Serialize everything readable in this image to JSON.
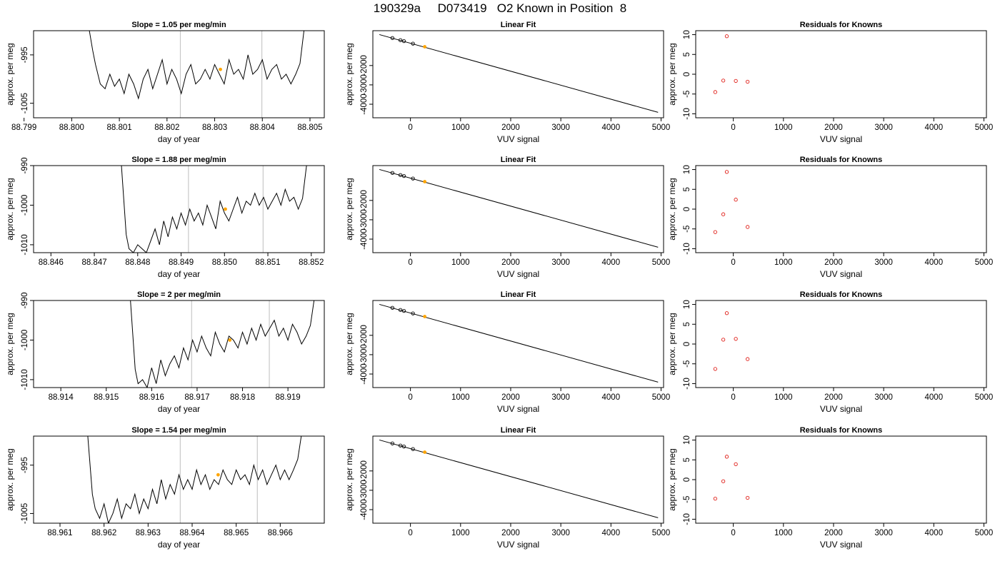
{
  "title": "190329a     D073419   O2 Known in Position  8",
  "colors": {
    "trace": "#000000",
    "vline": "#c8c8c8",
    "highlight": "#ffa500",
    "point": "#000000",
    "residual": "#e0201a"
  },
  "chart_data": [
    {
      "type": "line",
      "panel": "trace-1",
      "title": "Slope =  1.05  per meg/min",
      "xlabel": "day of year",
      "ylabel": "approx. per meg",
      "xlim": [
        88.7992,
        88.8053
      ],
      "ylim": [
        -1008,
        -990
      ],
      "xticks": [
        "88.799",
        "88.800",
        "88.801",
        "88.802",
        "88.803",
        "88.804",
        "88.805"
      ],
      "yticks": [
        "-995",
        "-1005"
      ],
      "vlines": [
        88.80228,
        88.80399
      ],
      "highlight_point": [
        88.80312,
        -998.0
      ],
      "x": [
        88.8005,
        88.8006,
        88.8007,
        88.8008,
        88.8009,
        88.801,
        88.8011,
        88.8012,
        88.8013,
        88.8014,
        88.8015,
        88.8016,
        88.8017,
        88.8018,
        88.8019,
        88.802,
        88.8021,
        88.8022,
        88.8023,
        88.8024,
        88.8025,
        88.8026,
        88.8027,
        88.8028,
        88.8029,
        88.803,
        88.8031,
        88.8032,
        88.8033,
        88.8034,
        88.8035,
        88.8036,
        88.8037,
        88.8038,
        88.8039,
        88.804,
        88.8041,
        88.8042,
        88.8043,
        88.8044,
        88.8045,
        88.8046,
        88.8047
      ],
      "y": [
        -997,
        -1001,
        -1002,
        -999,
        -1001.5,
        -1000,
        -1003,
        -999,
        -1001,
        -1004,
        -1000,
        -998,
        -1002,
        -999,
        -996,
        -1001,
        -998,
        -1000,
        -1003,
        -999,
        -997,
        -1001,
        -1000,
        -998,
        -1000,
        -997,
        -999,
        -1001,
        -996,
        -999,
        -998,
        -1000,
        -995,
        -999,
        -998,
        -996,
        -1000,
        -998,
        -997,
        -1000,
        -999,
        -1001,
        -999
      ]
    },
    {
      "type": "line",
      "panel": "fit-1",
      "title": "Linear Fit",
      "xlabel": "VUV signal",
      "ylabel": "approx. per meg",
      "xlim": [
        -750,
        5050
      ],
      "ylim": [
        -4700,
        -200
      ],
      "xticks": [
        0,
        1000,
        2000,
        3000,
        4000,
        5000
      ],
      "yticks": [
        -2000,
        -3000,
        -4000
      ],
      "line": [
        [
          -620,
          -400
        ],
        [
          4940,
          -4420
        ]
      ],
      "points": [
        [
          -360,
          -580
        ],
        [
          -200,
          -690
        ],
        [
          -130,
          -740
        ],
        [
          50,
          -870
        ]
      ],
      "highlight_point": [
        285,
        -1030
      ]
    },
    {
      "type": "scatter",
      "panel": "resid-1",
      "title": "Residuals for Knowns",
      "xlabel": "VUV signal",
      "ylabel": "approx. per meg",
      "xlim": [
        -750,
        5050
      ],
      "ylim": [
        -11,
        11
      ],
      "xticks": [
        0,
        1000,
        2000,
        3000,
        4000,
        5000
      ],
      "yticks": [
        10,
        5,
        0,
        -5,
        -10
      ],
      "x": [
        -360,
        -200,
        -130,
        50,
        285
      ],
      "y": [
        -4.5,
        -1.6,
        9.6,
        -1.7,
        -1.9
      ]
    },
    {
      "type": "line",
      "panel": "trace-2",
      "title": "Slope =  1.88  per meg/min",
      "xlabel": "day of year",
      "ylabel": "approx. per meg",
      "xlim": [
        88.8456,
        88.8523
      ],
      "ylim": [
        -1012,
        -990
      ],
      "xticks": [
        "88.846",
        "88.847",
        "88.848",
        "88.849",
        "88.850",
        "88.851",
        "88.852"
      ],
      "yticks": [
        "-990",
        "-1000",
        "-1010"
      ],
      "vlines": [
        88.84917,
        88.85089
      ],
      "highlight_point": [
        88.85002,
        -1001.0
      ],
      "x": [
        88.8478,
        88.8479,
        88.848,
        88.8481,
        88.8482,
        88.8483,
        88.8484,
        88.8485,
        88.8486,
        88.8487,
        88.8488,
        88.8489,
        88.849,
        88.8491,
        88.8492,
        88.8493,
        88.8494,
        88.8495,
        88.8496,
        88.8497,
        88.8498,
        88.8499,
        88.85,
        88.8501,
        88.8502,
        88.8503,
        88.8504,
        88.8505,
        88.8506,
        88.8507,
        88.8508,
        88.8509,
        88.851,
        88.8511,
        88.8512,
        88.8513,
        88.8514,
        88.8515,
        88.8516,
        88.8517
      ],
      "y": [
        -1011,
        -1012,
        -1010,
        -1011,
        -1012,
        -1009,
        -1006,
        -1010,
        -1004,
        -1008,
        -1003,
        -1006,
        -1002,
        -1005,
        -1001,
        -1004,
        -1002,
        -1005,
        -1000,
        -1003,
        -1006,
        -999,
        -1002,
        -1004,
        -1001,
        -998,
        -1002,
        -999,
        -1000,
        -997,
        -1000,
        -998,
        -1001,
        -999,
        -997,
        -1000,
        -996,
        -999,
        -998,
        -1001
      ]
    },
    {
      "type": "line",
      "panel": "fit-2",
      "title": "Linear Fit",
      "xlabel": "VUV signal",
      "ylabel": "approx. per meg",
      "xlim": [
        -750,
        5050
      ],
      "ylim": [
        -4700,
        -200
      ],
      "xticks": [
        0,
        1000,
        2000,
        3000,
        4000,
        5000
      ],
      "yticks": [
        -2000,
        -3000,
        -4000
      ],
      "line": [
        [
          -620,
          -400
        ],
        [
          4940,
          -4420
        ]
      ],
      "points": [
        [
          -360,
          -580
        ],
        [
          -200,
          -690
        ],
        [
          -130,
          -740
        ],
        [
          50,
          -870
        ]
      ],
      "highlight_point": [
        285,
        -1030
      ]
    },
    {
      "type": "scatter",
      "panel": "resid-2",
      "title": "Residuals for Knowns",
      "xlabel": "VUV signal",
      "ylabel": "approx. per meg",
      "xlim": [
        -750,
        5050
      ],
      "ylim": [
        -11,
        11
      ],
      "xticks": [
        0,
        1000,
        2000,
        3000,
        4000,
        5000
      ],
      "yticks": [
        10,
        5,
        0,
        -5,
        -10
      ],
      "x": [
        -360,
        -200,
        -130,
        50,
        285
      ],
      "y": [
        -5.8,
        -1.3,
        9.4,
        2.4,
        -4.5
      ]
    },
    {
      "type": "line",
      "panel": "trace-3",
      "title": "Slope =  2  per meg/min",
      "xlabel": "day of year",
      "ylabel": "approx. per meg",
      "xlim": [
        88.9134,
        88.9198
      ],
      "ylim": [
        -1012,
        -990
      ],
      "xticks": [
        "88.914",
        "88.915",
        "88.916",
        "88.917",
        "88.918",
        "88.919"
      ],
      "yticks": [
        "-990",
        "-1000",
        "-1010"
      ],
      "vlines": [
        88.91688,
        88.91859
      ],
      "highlight_point": [
        88.91772,
        -1000.0
      ],
      "x": [
        88.9157,
        88.9158,
        88.9159,
        88.916,
        88.9161,
        88.9162,
        88.9163,
        88.9164,
        88.9165,
        88.9166,
        88.9167,
        88.9168,
        88.9169,
        88.917,
        88.9171,
        88.9172,
        88.9173,
        88.9174,
        88.9175,
        88.9176,
        88.9177,
        88.9178,
        88.9179,
        88.918,
        88.9181,
        88.9182,
        88.9183,
        88.9184,
        88.9185,
        88.9186,
        88.9187,
        88.9188,
        88.9189,
        88.919,
        88.9191,
        88.9192,
        88.9193,
        88.9194
      ],
      "y": [
        -1011,
        -1010,
        -1012,
        -1007,
        -1011,
        -1005,
        -1009,
        -1006,
        -1004,
        -1007,
        -1002,
        -1005,
        -1000,
        -1003,
        -999,
        -1002,
        -1004,
        -998,
        -1001,
        -1003,
        -999,
        -1000,
        -1002,
        -998,
        -1001,
        -997,
        -1000,
        -996,
        -999,
        -997,
        -995,
        -999,
        -997,
        -1000,
        -996,
        -998,
        -1001,
        -999
      ]
    },
    {
      "type": "line",
      "panel": "fit-3",
      "title": "Linear Fit",
      "xlabel": "VUV signal",
      "ylabel": "approx. per meg",
      "xlim": [
        -750,
        5050
      ],
      "ylim": [
        -4700,
        -200
      ],
      "xticks": [
        0,
        1000,
        2000,
        3000,
        4000,
        5000
      ],
      "yticks": [
        -2000,
        -3000,
        -4000
      ],
      "line": [
        [
          -620,
          -400
        ],
        [
          4940,
          -4420
        ]
      ],
      "points": [
        [
          -360,
          -580
        ],
        [
          -200,
          -690
        ],
        [
          -130,
          -740
        ],
        [
          50,
          -870
        ]
      ],
      "highlight_point": [
        285,
        -1030
      ]
    },
    {
      "type": "scatter",
      "panel": "resid-3",
      "title": "Residuals for Knowns",
      "xlabel": "VUV signal",
      "ylabel": "approx. per meg",
      "xlim": [
        -750,
        5050
      ],
      "ylim": [
        -11,
        11
      ],
      "xticks": [
        0,
        1000,
        2000,
        3000,
        4000,
        5000
      ],
      "yticks": [
        10,
        5,
        0,
        -5,
        -10
      ],
      "x": [
        -360,
        -200,
        -130,
        50,
        285
      ],
      "y": [
        -6.3,
        1.1,
        7.8,
        1.3,
        -3.8
      ]
    },
    {
      "type": "line",
      "panel": "trace-4",
      "title": "Slope =  1.54  per meg/min",
      "xlabel": "day of year",
      "ylabel": "approx. per meg",
      "xlim": [
        88.9604,
        88.967
      ],
      "ylim": [
        -1007,
        -989
      ],
      "xticks": [
        "88.961",
        "88.962",
        "88.963",
        "88.964",
        "88.965",
        "88.966"
      ],
      "yticks": [
        "-995",
        "-1005"
      ],
      "vlines": [
        88.96373,
        88.96548
      ],
      "highlight_point": [
        88.96459,
        -997.0
      ],
      "x": [
        88.9618,
        88.9619,
        88.962,
        88.9621,
        88.9622,
        88.9623,
        88.9624,
        88.9625,
        88.9626,
        88.9627,
        88.9628,
        88.9629,
        88.963,
        88.9631,
        88.9632,
        88.9633,
        88.9634,
        88.9635,
        88.9636,
        88.9637,
        88.9638,
        88.9639,
        88.964,
        88.9641,
        88.9642,
        88.9643,
        88.9644,
        88.9645,
        88.9646,
        88.9647,
        88.9648,
        88.9649,
        88.965,
        88.9651,
        88.9652,
        88.9653,
        88.9654,
        88.9655,
        88.9656,
        88.9657,
        88.9658,
        88.9659,
        88.966,
        88.9661,
        88.9662,
        88.9663
      ],
      "y": [
        -1004,
        -1006,
        -1003,
        -1007,
        -1005,
        -1002,
        -1006,
        -1003,
        -1004,
        -1001,
        -1005,
        -1002,
        -1004,
        -1000,
        -1003,
        -998,
        -1002,
        -999,
        -1001,
        -997,
        -1000,
        -998,
        -1000,
        -996,
        -999,
        -997,
        -1000,
        -998,
        -999,
        -996,
        -998,
        -999,
        -996,
        -998,
        -997,
        -999,
        -995,
        -998,
        -996,
        -999,
        -997,
        -995,
        -998,
        -996,
        -998,
        -996
      ]
    },
    {
      "type": "line",
      "panel": "fit-4",
      "title": "Linear Fit",
      "xlabel": "VUV signal",
      "ylabel": "approx. per meg",
      "xlim": [
        -750,
        5050
      ],
      "ylim": [
        -4700,
        -200
      ],
      "xticks": [
        0,
        1000,
        2000,
        3000,
        4000,
        5000
      ],
      "yticks": [
        -2000,
        -3000,
        -4000
      ],
      "line": [
        [
          -620,
          -400
        ],
        [
          4940,
          -4420
        ]
      ],
      "points": [
        [
          -360,
          -580
        ],
        [
          -200,
          -690
        ],
        [
          -130,
          -740
        ],
        [
          50,
          -870
        ]
      ],
      "highlight_point": [
        285,
        -1030
      ]
    },
    {
      "type": "scatter",
      "panel": "resid-4",
      "title": "Residuals for Knowns",
      "xlabel": "VUV signal",
      "ylabel": "approx. per meg",
      "xlim": [
        -750,
        5050
      ],
      "ylim": [
        -11,
        11
      ],
      "xticks": [
        0,
        1000,
        2000,
        3000,
        4000,
        5000
      ],
      "yticks": [
        10,
        5,
        0,
        -5,
        -10
      ],
      "x": [
        -360,
        -200,
        -130,
        50,
        285
      ],
      "y": [
        -4.8,
        -0.4,
        5.8,
        3.9,
        -4.6
      ]
    }
  ]
}
